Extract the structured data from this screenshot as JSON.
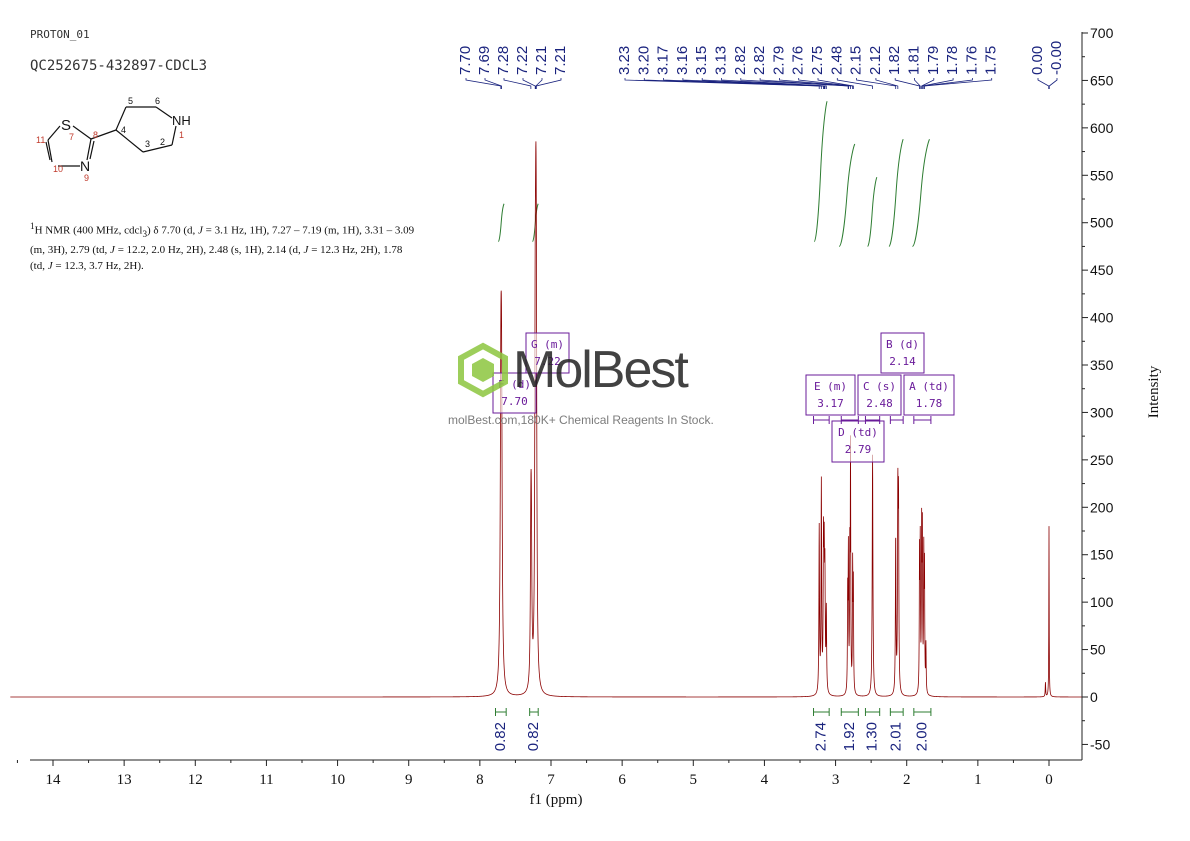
{
  "header": {
    "sample": "PROTON_01",
    "code": "QC252675-432897-CDCL3"
  },
  "nmr_text": {
    "nucleus_sup": "1",
    "p1": "H NMR (400 MHz, cdcl",
    "sub3": "3",
    "p2": ") δ 7.70 (d, ",
    "J": "J",
    "p3": " = 3.1 Hz, 1H), 7.27 – 7.19 (m, 1H), 3.31 – 3.09 (m, 3H), 2.79 (td, ",
    "p4": " = 12.2, 2.0 Hz, 2H), 2.48 (s, 1H), 2.14 (d, ",
    "p5": " = 12.3 Hz, 2H), 1.78 (td, ",
    "p6": " = 12.3, 3.7 Hz, 2H)."
  },
  "watermark": {
    "name": "MolBest",
    "tagline": "molBest.com,180K+ Chemical Reagents In Stock."
  },
  "molecule": {
    "atoms": [
      "S",
      "N",
      "NH"
    ],
    "numbers": [
      "1",
      "2",
      "3",
      "4",
      "5",
      "6",
      "7",
      "8",
      "9",
      "10",
      "11"
    ]
  },
  "chart_data": {
    "type": "line",
    "xlabel": "f1 (ppm)",
    "ylabel": "Intensity",
    "xlim": [
      14.6,
      -0.5
    ],
    "ylim": [
      -55,
      700
    ],
    "x_ticks": [
      14,
      13,
      12,
      11,
      10,
      9,
      8,
      7,
      6,
      5,
      4,
      3,
      2,
      1,
      0
    ],
    "y_ticks": [
      -50,
      0,
      50,
      100,
      150,
      200,
      250,
      300,
      350,
      400,
      450,
      500,
      550,
      600,
      650,
      700
    ],
    "peaks": [
      {
        "ppm": 7.705,
        "h": 270,
        "w": 0.01
      },
      {
        "ppm": 7.695,
        "h": 265,
        "w": 0.01
      },
      {
        "ppm": 7.283,
        "h": 145,
        "w": 0.008
      },
      {
        "ppm": 7.276,
        "h": 125,
        "w": 0.008
      },
      {
        "ppm": 7.222,
        "h": 300,
        "w": 0.008
      },
      {
        "ppm": 7.213,
        "h": 290,
        "w": 0.008
      },
      {
        "ppm": 7.206,
        "h": 280,
        "w": 0.008
      },
      {
        "ppm": 3.23,
        "h": 175,
        "w": 0.005
      },
      {
        "ppm": 3.2,
        "h": 220,
        "w": 0.005
      },
      {
        "ppm": 3.17,
        "h": 150,
        "w": 0.005
      },
      {
        "ppm": 3.16,
        "h": 125,
        "w": 0.005
      },
      {
        "ppm": 3.15,
        "h": 115,
        "w": 0.005
      },
      {
        "ppm": 3.13,
        "h": 85,
        "w": 0.005
      },
      {
        "ppm": 2.83,
        "h": 100,
        "w": 0.004
      },
      {
        "ppm": 2.82,
        "h": 145,
        "w": 0.004
      },
      {
        "ppm": 2.8,
        "h": 135,
        "w": 0.004
      },
      {
        "ppm": 2.79,
        "h": 250,
        "w": 0.004
      },
      {
        "ppm": 2.76,
        "h": 130,
        "w": 0.004
      },
      {
        "ppm": 2.75,
        "h": 110,
        "w": 0.004
      },
      {
        "ppm": 2.48,
        "h": 255,
        "w": 0.006
      },
      {
        "ppm": 2.155,
        "h": 165,
        "w": 0.005
      },
      {
        "ppm": 2.125,
        "h": 200,
        "w": 0.005
      },
      {
        "ppm": 2.115,
        "h": 190,
        "w": 0.005
      },
      {
        "ppm": 1.82,
        "h": 140,
        "w": 0.004
      },
      {
        "ppm": 1.81,
        "h": 150,
        "w": 0.004
      },
      {
        "ppm": 1.79,
        "h": 165,
        "w": 0.004
      },
      {
        "ppm": 1.78,
        "h": 160,
        "w": 0.004
      },
      {
        "ppm": 1.76,
        "h": 140,
        "w": 0.004
      },
      {
        "ppm": 1.75,
        "h": 125,
        "w": 0.004
      },
      {
        "ppm": 1.73,
        "h": 50,
        "w": 0.004
      },
      {
        "ppm": 0.0,
        "h": 180,
        "w": 0.003
      },
      {
        "ppm": 0.05,
        "h": 15,
        "w": 0.004
      }
    ],
    "peak_labels": [
      "7.70",
      "7.69",
      "7.28",
      "7.22",
      "7.21",
      "7.21",
      "3.23",
      "3.20",
      "3.17",
      "3.16",
      "3.15",
      "3.13",
      "2.82",
      "2.82",
      "2.79",
      "2.76",
      "2.75",
      "2.48",
      "2.15",
      "2.12",
      "1.82",
      "1.81",
      "1.79",
      "1.78",
      "1.76",
      "1.75",
      "0.00",
      "-0.00"
    ],
    "peak_label_ppm": [
      7.705,
      7.695,
      7.283,
      7.222,
      7.213,
      7.206,
      3.23,
      3.2,
      3.17,
      3.16,
      3.15,
      3.13,
      2.823,
      2.818,
      2.79,
      2.76,
      2.75,
      2.48,
      2.155,
      2.125,
      1.82,
      1.81,
      1.79,
      1.78,
      1.76,
      1.75,
      0.004,
      -0.004
    ],
    "multiplets": [
      {
        "label": "G (m)",
        "ppm": "7.22",
        "x_ppm": 7.22
      },
      {
        "label": "F (d)",
        "ppm": "7.70",
        "x_ppm": 7.7
      },
      {
        "label": "E (m)",
        "ppm": "3.17",
        "x_ppm": 3.17
      },
      {
        "label": "C (s)",
        "ppm": "2.48",
        "x_ppm": 2.48
      },
      {
        "label": "A (td)",
        "ppm": "1.78",
        "x_ppm": 1.78
      },
      {
        "label": "B (d)",
        "ppm": "2.14",
        "x_ppm": 2.14
      },
      {
        "label": "D (td)",
        "ppm": "2.79",
        "x_ppm": 2.79
      }
    ],
    "integrals": [
      {
        "value": "0.82",
        "from": 7.78,
        "to": 7.63
      },
      {
        "value": "0.82",
        "from": 7.3,
        "to": 7.18
      },
      {
        "value": "2.74",
        "from": 3.31,
        "to": 3.09
      },
      {
        "value": "1.92",
        "from": 2.92,
        "to": 2.68
      },
      {
        "value": "1.30",
        "from": 2.58,
        "to": 2.38
      },
      {
        "value": "2.01",
        "from": 2.23,
        "to": 2.05
      },
      {
        "value": "2.00",
        "from": 1.9,
        "to": 1.66
      }
    ]
  }
}
